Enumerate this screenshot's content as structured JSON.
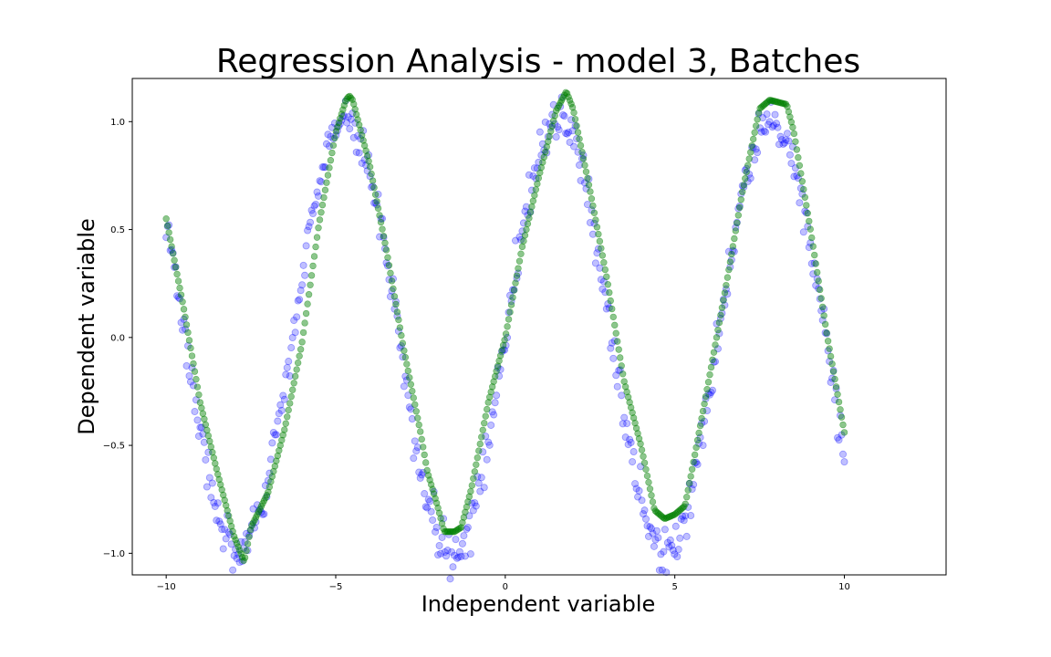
{
  "chart_data": {
    "type": "scatter",
    "title": "Regression Analysis - model 3, Batches",
    "xlabel": "Independent variable",
    "ylabel": "Dependent variable",
    "xlim": [
      -11,
      13
    ],
    "ylim": [
      -1.1,
      1.2
    ],
    "xticks": [
      -10,
      -5,
      0,
      5,
      10
    ],
    "xtick_labels": [
      "−10",
      "−5",
      "0",
      "5",
      "10"
    ],
    "yticks": [
      -1.0,
      -0.5,
      0.0,
      0.5,
      1.0
    ],
    "ytick_labels": [
      "−1.0",
      "−0.5",
      "0.0",
      "0.5",
      "1.0"
    ],
    "grid": false,
    "series": [
      {
        "kind": "scatter",
        "color": "#0000ff",
        "opacity": 0.25,
        "x_range": [
          -10,
          10
        ],
        "count": 500,
        "model": "sin(x) + noise",
        "noise_std": 0.05,
        "noise_seed": 3
      },
      {
        "kind": "fit",
        "color": "#008000",
        "x": [
          -10,
          -9.5,
          -9,
          -8.5,
          -8,
          -7.7,
          -7.5,
          -7,
          -6.5,
          -6,
          -5.5,
          -5,
          -4.7,
          -4.6,
          -4.5,
          -4,
          -3.5,
          -3,
          -2.5,
          -2.3,
          -2,
          -1.8,
          -1.5,
          -1.3,
          -1,
          -0.5,
          0,
          0.5,
          1,
          1.5,
          1.8,
          2,
          2.5,
          3,
          3.5,
          4,
          4.4,
          4.7,
          5,
          5.3,
          5.5,
          6,
          6.5,
          7,
          7.5,
          7.8,
          8.3,
          8.5,
          9,
          9.5,
          10
        ],
        "y": [
          0.55,
          0.15,
          -0.3,
          -0.62,
          -0.92,
          -1.04,
          -0.88,
          -0.72,
          -0.42,
          -0.03,
          0.52,
          0.95,
          1.1,
          1.12,
          1.1,
          0.8,
          0.4,
          -0.05,
          -0.44,
          -0.62,
          -0.78,
          -0.9,
          -0.9,
          -0.88,
          -0.7,
          -0.3,
          0.0,
          0.42,
          0.75,
          1.05,
          1.14,
          1.06,
          0.68,
          0.27,
          -0.2,
          -0.5,
          -0.8,
          -0.84,
          -0.82,
          -0.78,
          -0.62,
          -0.2,
          0.23,
          0.68,
          1.06,
          1.1,
          1.08,
          0.96,
          0.5,
          0.0,
          -0.44
        ]
      }
    ]
  }
}
